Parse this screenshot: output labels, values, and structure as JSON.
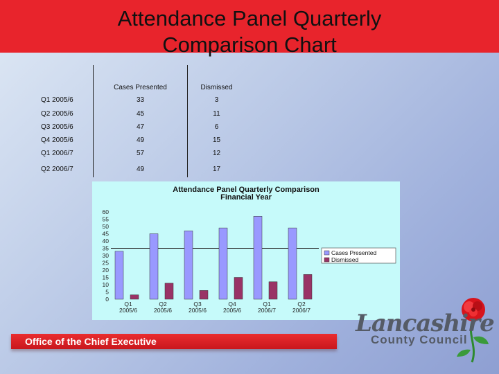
{
  "slide": {
    "title_line1": "Attendance Panel Quarterly",
    "title_line2": "Comparison Chart",
    "footer_text": "Office of the Chief Executive",
    "logo_word": "Lancashire",
    "logo_sub": "County Council"
  },
  "table": {
    "headers": [
      "Cases Presented",
      "Dismissed"
    ],
    "rows": [
      {
        "label": "Q1 2005/6",
        "cases": "33",
        "dismissed": "3"
      },
      {
        "label": "Q2 2005/6",
        "cases": "45",
        "dismissed": "11"
      },
      {
        "label": "Q3 2005/6",
        "cases": "47",
        "dismissed": "6"
      },
      {
        "label": "Q4 2005/6",
        "cases": "49",
        "dismissed": "15"
      },
      {
        "label": "Q1 2006/7",
        "cases": "57",
        "dismissed": "12"
      },
      {
        "label": "Q2 2006/7",
        "cases": "49",
        "dismissed": "17"
      }
    ]
  },
  "chart_data": {
    "type": "bar",
    "title": "Attendance Panel Quarterly Comparison Financial Year",
    "title_line1": "Attendance Panel Quarterly Comparison",
    "title_line2": "Financial Year",
    "categories": [
      "Q1 2005/6",
      "Q2 2005/6",
      "Q3 2005/6",
      "Q4 2005/6",
      "Q1 2006/7",
      "Q2 2006/7"
    ],
    "category_lines": [
      [
        "Q1",
        "2005/6"
      ],
      [
        "Q2",
        "2005/6"
      ],
      [
        "Q3",
        "2005/6"
      ],
      [
        "Q4",
        "2005/6"
      ],
      [
        "Q1",
        "2006/7"
      ],
      [
        "Q2",
        "2006/7"
      ]
    ],
    "series": [
      {
        "name": "Cases Presented",
        "values": [
          33,
          45,
          47,
          49,
          57,
          49
        ],
        "color": "#9999ff"
      },
      {
        "name": "Dismissed",
        "values": [
          3,
          11,
          6,
          15,
          12,
          17
        ],
        "color": "#993366"
      }
    ],
    "ylim": [
      0,
      60
    ],
    "yticks": [
      0,
      5,
      10,
      15,
      20,
      25,
      30,
      35,
      40,
      45,
      50,
      55,
      60
    ],
    "gridlines": [
      35
    ],
    "legend_position": "right",
    "xlabel": "",
    "ylabel": ""
  },
  "colors": {
    "title_band": "#e8242c",
    "chart_bg": "#c6fafa",
    "footer": "#d81f26"
  }
}
